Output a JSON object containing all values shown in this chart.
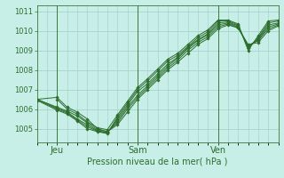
{
  "title": "Pression niveau de la mer( hPa )",
  "background_color": "#c8eee8",
  "grid_color": "#a0ccc8",
  "line_color": "#2d6e2d",
  "marker_color": "#2d6e2d",
  "ylim": [
    1004.3,
    1011.3
  ],
  "xlim": [
    0,
    48
  ],
  "yticks": [
    1005,
    1006,
    1007,
    1008,
    1009,
    1010,
    1011
  ],
  "xtick_positions": [
    4,
    20,
    36
  ],
  "xtick_labels": [
    "Jeu",
    "Sam",
    "Ven"
  ],
  "vlines": [
    4,
    20,
    36
  ],
  "lines": [
    [
      [
        0,
        1006.5
      ],
      [
        4,
        1006.6
      ],
      [
        6,
        1006.1
      ],
      [
        8,
        1005.85
      ],
      [
        10,
        1005.5
      ],
      [
        12,
        1005.0
      ],
      [
        14,
        1004.85
      ],
      [
        16,
        1005.2
      ],
      [
        18,
        1005.85
      ],
      [
        20,
        1006.5
      ],
      [
        22,
        1007.0
      ],
      [
        24,
        1007.5
      ],
      [
        26,
        1008.0
      ],
      [
        28,
        1008.4
      ],
      [
        30,
        1008.85
      ],
      [
        32,
        1009.3
      ],
      [
        34,
        1009.6
      ],
      [
        36,
        1010.1
      ],
      [
        38,
        1010.3
      ],
      [
        40,
        1010.15
      ],
      [
        42,
        1009.3
      ],
      [
        44,
        1009.4
      ],
      [
        46,
        1010.0
      ],
      [
        48,
        1010.25
      ]
    ],
    [
      [
        0,
        1006.5
      ],
      [
        4,
        1006.1
      ],
      [
        6,
        1005.9
      ],
      [
        8,
        1005.65
      ],
      [
        10,
        1005.3
      ],
      [
        12,
        1004.95
      ],
      [
        14,
        1004.85
      ],
      [
        16,
        1005.3
      ],
      [
        18,
        1006.0
      ],
      [
        20,
        1006.6
      ],
      [
        22,
        1007.1
      ],
      [
        24,
        1007.6
      ],
      [
        26,
        1008.1
      ],
      [
        28,
        1008.5
      ],
      [
        30,
        1009.0
      ],
      [
        32,
        1009.4
      ],
      [
        34,
        1009.7
      ],
      [
        36,
        1010.2
      ],
      [
        38,
        1010.35
      ],
      [
        40,
        1010.15
      ],
      [
        42,
        1009.25
      ],
      [
        44,
        1009.5
      ],
      [
        46,
        1010.1
      ],
      [
        48,
        1010.3
      ]
    ],
    [
      [
        0,
        1006.5
      ],
      [
        4,
        1006.05
      ],
      [
        6,
        1005.85
      ],
      [
        8,
        1005.5
      ],
      [
        10,
        1005.2
      ],
      [
        12,
        1004.9
      ],
      [
        14,
        1004.8
      ],
      [
        16,
        1005.4
      ],
      [
        18,
        1006.1
      ],
      [
        20,
        1006.7
      ],
      [
        22,
        1007.2
      ],
      [
        24,
        1007.7
      ],
      [
        26,
        1008.2
      ],
      [
        28,
        1008.6
      ],
      [
        30,
        1009.1
      ],
      [
        32,
        1009.5
      ],
      [
        34,
        1009.8
      ],
      [
        36,
        1010.3
      ],
      [
        38,
        1010.4
      ],
      [
        40,
        1010.2
      ],
      [
        42,
        1009.2
      ],
      [
        44,
        1009.55
      ],
      [
        46,
        1010.2
      ],
      [
        48,
        1010.35
      ]
    ],
    [
      [
        0,
        1006.5
      ],
      [
        4,
        1006.0
      ],
      [
        6,
        1005.8
      ],
      [
        8,
        1005.45
      ],
      [
        10,
        1005.1
      ],
      [
        12,
        1004.88
      ],
      [
        14,
        1004.78
      ],
      [
        16,
        1005.5
      ],
      [
        18,
        1006.2
      ],
      [
        20,
        1006.9
      ],
      [
        22,
        1007.3
      ],
      [
        24,
        1007.8
      ],
      [
        26,
        1008.3
      ],
      [
        28,
        1008.65
      ],
      [
        30,
        1009.15
      ],
      [
        32,
        1009.55
      ],
      [
        34,
        1009.85
      ],
      [
        36,
        1010.4
      ],
      [
        38,
        1010.45
      ],
      [
        40,
        1010.25
      ],
      [
        42,
        1009.15
      ],
      [
        44,
        1009.6
      ],
      [
        46,
        1010.3
      ],
      [
        48,
        1010.4
      ]
    ],
    [
      [
        0,
        1006.45
      ],
      [
        4,
        1005.95
      ],
      [
        6,
        1005.75
      ],
      [
        8,
        1005.4
      ],
      [
        10,
        1005.0
      ],
      [
        12,
        1004.85
      ],
      [
        14,
        1004.75
      ],
      [
        16,
        1005.6
      ],
      [
        18,
        1006.3
      ],
      [
        20,
        1007.0
      ],
      [
        22,
        1007.45
      ],
      [
        24,
        1007.95
      ],
      [
        26,
        1008.45
      ],
      [
        28,
        1008.75
      ],
      [
        30,
        1009.2
      ],
      [
        32,
        1009.65
      ],
      [
        34,
        1009.95
      ],
      [
        36,
        1010.5
      ],
      [
        38,
        1010.5
      ],
      [
        40,
        1010.3
      ],
      [
        42,
        1009.1
      ],
      [
        44,
        1009.65
      ],
      [
        46,
        1010.4
      ],
      [
        48,
        1010.5
      ]
    ],
    [
      [
        4,
        1006.5
      ],
      [
        6,
        1006.0
      ],
      [
        8,
        1005.75
      ],
      [
        10,
        1005.35
      ],
      [
        12,
        1005.05
      ],
      [
        14,
        1004.95
      ],
      [
        16,
        1005.7
      ],
      [
        18,
        1006.4
      ],
      [
        20,
        1007.1
      ],
      [
        22,
        1007.55
      ],
      [
        24,
        1008.05
      ],
      [
        26,
        1008.55
      ],
      [
        28,
        1008.85
      ],
      [
        30,
        1009.3
      ],
      [
        32,
        1009.75
      ],
      [
        34,
        1010.05
      ],
      [
        36,
        1010.55
      ],
      [
        38,
        1010.55
      ],
      [
        40,
        1010.35
      ],
      [
        42,
        1009.0
      ],
      [
        44,
        1009.75
      ],
      [
        46,
        1010.5
      ],
      [
        48,
        1010.55
      ]
    ]
  ]
}
